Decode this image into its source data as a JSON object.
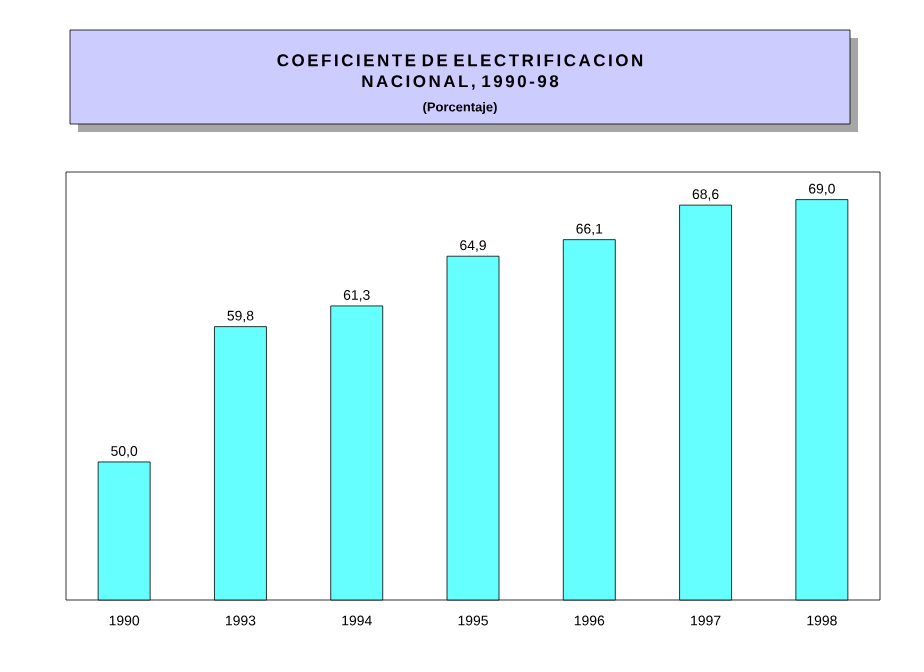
{
  "chart_data": {
    "type": "bar",
    "title": "COEFICIENTE DE ELECTRIFICACION NACIONAL, 1990-98",
    "subtitle": "(Porcentaje)",
    "categories": [
      "1990",
      "1993",
      "1994",
      "1995",
      "1996",
      "1997",
      "1998"
    ],
    "values": [
      50.0,
      59.8,
      61.3,
      64.9,
      66.1,
      68.6,
      69.0
    ],
    "value_labels": [
      "50,0",
      "59,8",
      "61,3",
      "64,9",
      "66,1",
      "68,6",
      "69,0"
    ],
    "color": "#66ffff",
    "ylim": [
      40,
      71
    ]
  }
}
